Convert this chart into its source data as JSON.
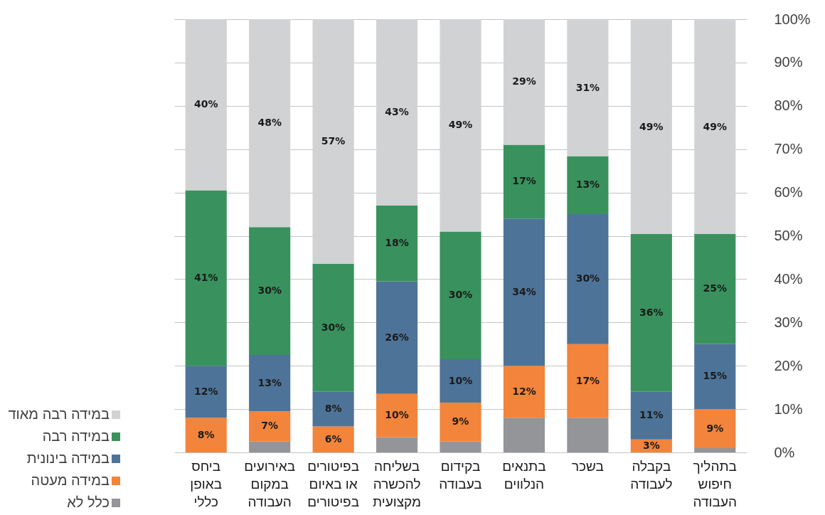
{
  "chart_data": {
    "type": "bar",
    "stacked": true,
    "categories": [
      "ביחס באופן כללי",
      "באירועים במקום העבודה",
      "בפיטורים או באיום בפיטורים",
      "בשליחה להכשרה מקצועית",
      "בקידום בעבודה",
      "בתנאים הנלווים",
      "בשכר",
      "בקבלה לעבודה",
      "בתהליך חיפוש העבודה"
    ],
    "series": [
      {
        "name": "כלל לא",
        "color": "#939598",
        "values": [
          null,
          2.5,
          null,
          3.5,
          2.5,
          8,
          8,
          null,
          1
        ]
      },
      {
        "name": "במידה מעטה",
        "color": "#f3843b",
        "values": [
          8,
          7,
          6,
          10,
          9,
          12,
          17,
          3,
          9
        ],
        "value_labels": [
          "8%",
          "7%",
          "6%",
          "10%",
          "9%",
          "12%",
          "17%",
          "3%",
          "9%"
        ]
      },
      {
        "name": "במידה בינונית",
        "color": "#4e7398",
        "values": [
          12,
          13,
          8,
          26,
          10,
          34,
          30,
          11,
          15
        ],
        "value_labels": [
          "12%",
          "13%",
          "8%",
          "26%",
          "10%",
          "34%",
          "30%",
          "11%",
          "15%"
        ]
      },
      {
        "name": "במידה רבה",
        "color": "#39925d",
        "values": [
          40.5,
          29.5,
          29.5,
          17.5,
          29.5,
          17,
          13.4,
          36.4,
          25.4
        ],
        "value_labels": [
          "41%",
          "30%",
          "30%",
          "18%",
          "30%",
          "17%",
          "13%",
          "36%",
          "25%"
        ]
      },
      {
        "name": "במידה רבה מאוד",
        "color": "#d1d2d4",
        "values": [
          39.5,
          48,
          56.5,
          43,
          49,
          29,
          31.4,
          49.4,
          49.4
        ],
        "value_labels": [
          "40%",
          "48%",
          "57%",
          "43%",
          "49%",
          "29%",
          "31%",
          "49%",
          "49%"
        ]
      }
    ],
    "ylim": [
      0,
      100
    ],
    "yticks": [
      {
        "value": 0,
        "label": "0%"
      },
      {
        "value": 10,
        "label": "10%"
      },
      {
        "value": 20,
        "label": "20%"
      },
      {
        "value": 30,
        "label": "30%"
      },
      {
        "value": 40,
        "label": "40%"
      },
      {
        "value": 50,
        "label": "50%"
      },
      {
        "value": 60,
        "label": "60%"
      },
      {
        "value": 70,
        "label": "70%"
      },
      {
        "value": 80,
        "label": "80%"
      },
      {
        "value": 90,
        "label": "90%"
      },
      {
        "value": 100,
        "label": "100%"
      }
    ],
    "grid": "y",
    "legend": "bottom left"
  }
}
